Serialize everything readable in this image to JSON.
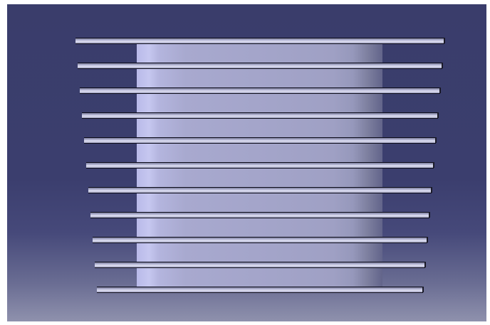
{
  "viewer": {
    "background_top": "#3a3d6b",
    "background_bottom": "#8f91ad",
    "body_color": "#a3a4c9",
    "fin_color": "#c5c6e3",
    "outline_color": "#0c0c1a"
  },
  "model": {
    "part": "cylinder-body",
    "fin_count": 11
  }
}
